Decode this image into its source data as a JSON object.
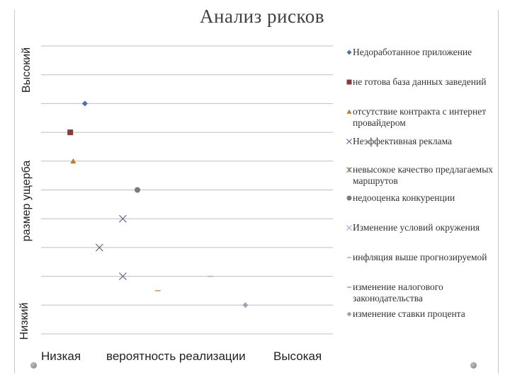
{
  "slide": {
    "title": "Анализ рисков",
    "y_high_label": "Высокий",
    "y_axis_label": "размер ущерба",
    "y_low_label": "Низкий",
    "x_low_label": "Низкая",
    "x_axis_label": "вероятность реализации",
    "x_high_label": "Высокая"
  },
  "chart_data": {
    "type": "scatter",
    "title": "Анализ рисков",
    "xlabel": "вероятность реализации",
    "ylabel": "размер ущерба",
    "xlim": [
      0,
      10
    ],
    "ylim": [
      0,
      10
    ],
    "grid": "horizontal",
    "legend_position": "right",
    "series": [
      {
        "name": "Недоработанное приложение",
        "marker": "diamond",
        "color": "#4f6fa8",
        "points": [
          [
            1.5,
            8
          ]
        ]
      },
      {
        "name": "не готова база данных заведений",
        "marker": "square",
        "color": "#8b3a3a",
        "points": [
          [
            1,
            7
          ]
        ]
      },
      {
        "name": "отсутствие контракта с интернет провайдером",
        "marker": "triangle",
        "color": "#c07a30",
        "points": [
          [
            1.1,
            6
          ]
        ]
      },
      {
        "name": "Неэффективная реклама",
        "marker": "x",
        "color": "#6a6a8a",
        "points": [
          [
            2.8,
            4
          ],
          [
            2,
            3
          ],
          [
            2.8,
            2
          ]
        ]
      },
      {
        "name": "невысокое качество предлагаемых маршрутов",
        "marker": "star",
        "color": "#7a7a5a",
        "points": []
      },
      {
        "name": "недооценка конкуренции",
        "marker": "circle",
        "color": "#7a7a7a",
        "points": [
          [
            3.3,
            5
          ]
        ]
      },
      {
        "name": "Изменение условий окружения",
        "marker": "x",
        "color": "#9aaac8",
        "points": []
      },
      {
        "name": "инфляция выше прогнозируемой",
        "marker": "dash",
        "color": "#c8a8a8",
        "points": [
          [
            5.8,
            2
          ]
        ]
      },
      {
        "name": "изменение налогового законодательства",
        "marker": "dash",
        "color": "#d79a6a",
        "points": [
          [
            4,
            1.5
          ]
        ]
      },
      {
        "name": "изменение ставки процента",
        "marker": "diamond",
        "color": "#9aa6b8",
        "points": [
          [
            7,
            1
          ]
        ]
      }
    ]
  }
}
